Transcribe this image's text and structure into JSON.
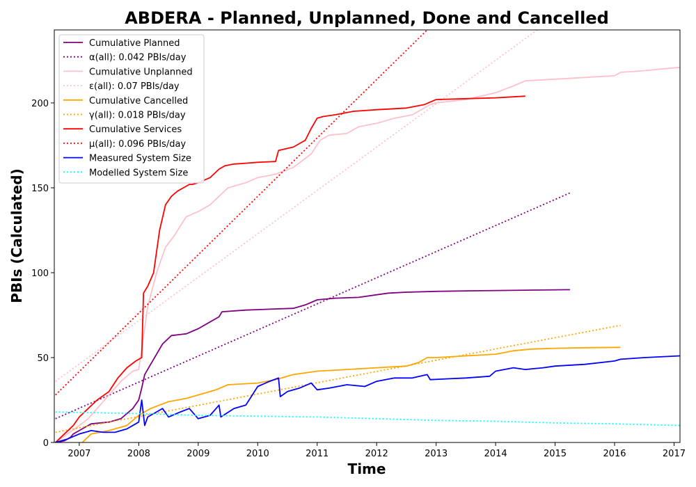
{
  "chart_data": {
    "type": "line",
    "title": "ABDERA - Planned, Unplanned, Done  and Cancelled",
    "xlabel": "Time",
    "ylabel": "PBIs (Calculated)",
    "xlim": [
      2006.58,
      2017.1
    ],
    "ylim": [
      0,
      243
    ],
    "x_ticks": [
      2007,
      2008,
      2009,
      2010,
      2011,
      2012,
      2013,
      2014,
      2015,
      2016,
      2017
    ],
    "y_ticks": [
      0,
      50,
      100,
      150,
      200
    ],
    "grid": false,
    "legend_position": "top-left",
    "series": [
      {
        "name": "Cumulative Planned",
        "color": "#800080",
        "style": "solid",
        "x": [
          2006.6,
          2006.75,
          2006.85,
          2006.9,
          2007.0,
          2007.1,
          2007.2,
          2007.5,
          2007.7,
          2007.9,
          2008.0,
          2008.05,
          2008.1,
          2008.2,
          2008.3,
          2008.4,
          2008.55,
          2008.8,
          2009.0,
          2009.2,
          2009.35,
          2009.4,
          2009.8,
          2010.2,
          2010.6,
          2010.8,
          2011.0,
          2011.3,
          2011.7,
          2012.0,
          2012.2,
          2012.5,
          2013.0,
          2013.5,
          2014.0,
          2014.5,
          2015.0,
          2015.25
        ],
        "y": [
          0,
          1,
          3,
          5,
          7,
          9,
          11,
          12,
          14,
          20,
          25,
          32,
          40,
          46,
          52,
          58,
          63,
          64,
          67,
          71,
          74,
          77,
          78,
          78.5,
          79,
          81,
          84,
          85,
          85.5,
          87,
          88,
          88.5,
          89,
          89.3,
          89.5,
          89.7,
          89.9,
          90
        ]
      },
      {
        "name": "α(all): 0.042 PBIs/day",
        "color": "#800080",
        "style": "dotted",
        "x": [
          2006.6,
          2015.25
        ],
        "y": [
          14,
          147
        ]
      },
      {
        "name": "Cumulative Unplanned",
        "color": "#ffc0cb",
        "style": "solid",
        "x": [
          2006.6,
          2006.8,
          2007.0,
          2007.15,
          2007.3,
          2007.5,
          2007.7,
          2007.9,
          2008.0,
          2008.05,
          2008.15,
          2008.3,
          2008.45,
          2008.6,
          2008.8,
          2009.0,
          2009.2,
          2009.35,
          2009.5,
          2009.8,
          2010.0,
          2010.3,
          2010.6,
          2010.9,
          2011.05,
          2011.2,
          2011.5,
          2011.7,
          2012.0,
          2012.3,
          2012.6,
          2012.9,
          2013.0,
          2013.5,
          2014.0,
          2014.3,
          2014.5,
          2015.0,
          2015.5,
          2016.0,
          2016.1,
          2016.5,
          2017.1
        ],
        "y": [
          0,
          5,
          10,
          14,
          20,
          28,
          36,
          42,
          43,
          55,
          80,
          100,
          115,
          122,
          133,
          136,
          140,
          145,
          150,
          153,
          156,
          158,
          162,
          170,
          178,
          181,
          182,
          186,
          188,
          191,
          193,
          199,
          200,
          202,
          206,
          210,
          213,
          214,
          215,
          216,
          218,
          219,
          221
        ]
      },
      {
        "name": "ε(all): 0.07 PBIs/day",
        "color": "#ffc0cb",
        "style": "dotted",
        "x": [
          2006.6,
          2014.7
        ],
        "y": [
          36,
          243
        ]
      },
      {
        "name": "Cumulative Cancelled",
        "color": "#ffa500",
        "style": "solid",
        "x": [
          2007.05,
          2007.2,
          2007.5,
          2007.8,
          2008.0,
          2008.2,
          2008.5,
          2008.8,
          2009.0,
          2009.3,
          2009.5,
          2010.0,
          2010.3,
          2010.6,
          2011.0,
          2011.5,
          2012.0,
          2012.5,
          2012.7,
          2012.85,
          2013.0,
          2013.5,
          2014.0,
          2014.3,
          2014.6,
          2015.0,
          2015.5,
          2016.1
        ],
        "y": [
          0,
          5,
          7,
          10,
          16,
          20,
          24,
          26,
          28,
          31,
          34,
          35,
          37,
          40,
          42,
          43,
          44,
          45,
          47,
          50,
          50,
          51,
          52,
          54,
          55,
          55.5,
          55.8,
          56
        ]
      },
      {
        "name": "γ(all): 0.018 PBIs/day",
        "color": "#ffa500",
        "style": "dotted",
        "x": [
          2006.6,
          2016.1
        ],
        "y": [
          6,
          69
        ]
      },
      {
        "name": "Cumulative Services",
        "color": "#ff0000",
        "style": "solid",
        "x": [
          2006.6,
          2006.75,
          2006.9,
          2007.0,
          2007.15,
          2007.3,
          2007.5,
          2007.65,
          2007.8,
          2007.95,
          2008.05,
          2008.08,
          2008.15,
          2008.25,
          2008.35,
          2008.45,
          2008.55,
          2008.65,
          2008.75,
          2008.85,
          2008.9,
          2009.0,
          2009.2,
          2009.35,
          2009.45,
          2009.6,
          2009.8,
          2010.0,
          2010.3,
          2010.35,
          2010.6,
          2010.8,
          2010.9,
          2011.0,
          2011.1,
          2011.3,
          2011.6,
          2012.0,
          2012.5,
          2012.8,
          2013.0,
          2013.5,
          2014.0,
          2014.5
        ],
        "y": [
          0,
          5,
          10,
          15,
          20,
          25,
          30,
          38,
          44,
          48,
          50,
          88,
          92,
          100,
          125,
          140,
          145,
          148,
          150,
          152,
          152,
          153,
          156,
          161,
          163,
          164,
          164.5,
          165,
          165.5,
          172,
          174,
          178,
          185,
          191,
          192,
          193,
          195,
          196,
          197,
          199,
          202,
          202.5,
          203,
          204
        ]
      },
      {
        "name": "μ(all): 0.096 PBIs/day",
        "color": "#ff0000",
        "style": "dotted",
        "x": [
          2006.6,
          2012.85
        ],
        "y": [
          28,
          243
        ]
      },
      {
        "name": "Measured System Size",
        "color": "#0000ff",
        "style": "solid",
        "x": [
          2006.6,
          2006.8,
          2007.0,
          2007.2,
          2007.4,
          2007.6,
          2007.8,
          2008.0,
          2008.05,
          2008.1,
          2008.15,
          2008.3,
          2008.4,
          2008.5,
          2008.7,
          2008.85,
          2009.0,
          2009.2,
          2009.35,
          2009.38,
          2009.6,
          2009.8,
          2010.0,
          2010.2,
          2010.35,
          2010.38,
          2010.5,
          2010.7,
          2010.9,
          2011.0,
          2011.2,
          2011.5,
          2011.8,
          2012.0,
          2012.3,
          2012.6,
          2012.85,
          2012.9,
          2013.5,
          2013.9,
          2014.0,
          2014.3,
          2014.5,
          2014.8,
          2015.0,
          2015.5,
          2016.0,
          2016.1,
          2016.5,
          2017.1
        ],
        "y": [
          0,
          2,
          5,
          7,
          6,
          6,
          8,
          12,
          25,
          10,
          15,
          18,
          20,
          15,
          18,
          20,
          14,
          16,
          22,
          15,
          20,
          22,
          33,
          36,
          38,
          27,
          30,
          32,
          35,
          31,
          32,
          34,
          33,
          36,
          38,
          38,
          40,
          37,
          38,
          39,
          42,
          44,
          43,
          44,
          45,
          46,
          48,
          49,
          50,
          51
        ]
      },
      {
        "name": "Modelled System Size",
        "color": "#00ffff",
        "style": "dotted",
        "x": [
          2006.6,
          2008.0,
          2009.0,
          2010.0,
          2011.0,
          2012.0,
          2013.0,
          2014.0,
          2015.0,
          2016.0,
          2017.1
        ],
        "y": [
          18,
          17,
          16,
          15.5,
          15,
          14,
          13,
          12.5,
          11.5,
          11,
          10
        ]
      }
    ]
  }
}
